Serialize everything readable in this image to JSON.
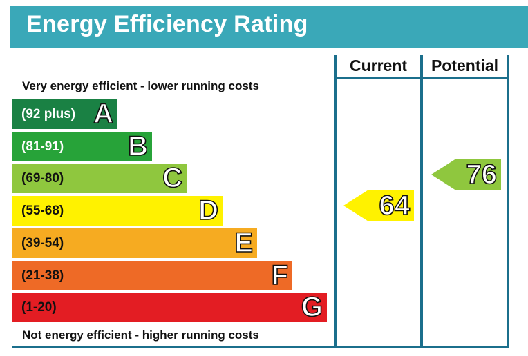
{
  "title": "Energy Efficiency Rating",
  "columns": {
    "current": "Current",
    "potential": "Potential"
  },
  "notes": {
    "top": "Very energy efficient - lower running costs",
    "bottom": "Not energy efficient - higher running costs"
  },
  "bands": [
    {
      "range": "(92 plus)",
      "letter": "A",
      "color": "#1a8144"
    },
    {
      "range": "(81-91)",
      "letter": "B",
      "color": "#27a339"
    },
    {
      "range": "(69-80)",
      "letter": "C",
      "color": "#8fc73e"
    },
    {
      "range": "(55-68)",
      "letter": "D",
      "color": "#fff200"
    },
    {
      "range": "(39-54)",
      "letter": "E",
      "color": "#f6ab21"
    },
    {
      "range": "(21-38)",
      "letter": "F",
      "color": "#ee6a26"
    },
    {
      "range": "(1-20)",
      "letter": "G",
      "color": "#e31d23"
    }
  ],
  "ratings": {
    "current": {
      "value": "64",
      "band": "D",
      "color": "#fff200"
    },
    "potential": {
      "value": "76",
      "band": "C",
      "color": "#8fc73e"
    }
  }
}
